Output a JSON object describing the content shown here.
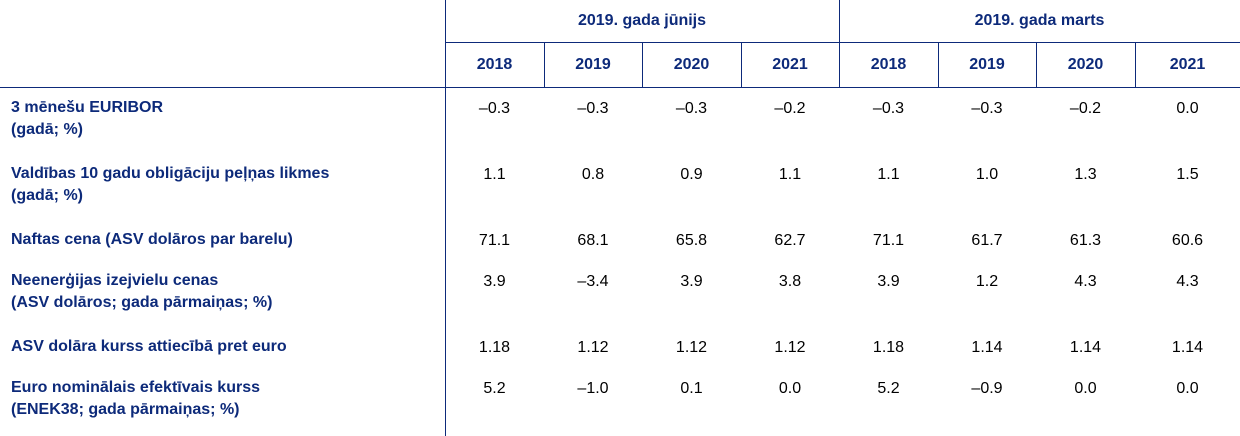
{
  "table": {
    "groups": [
      "2019. gada jūnijs",
      "2019. gada marts"
    ],
    "years": [
      "2018",
      "2019",
      "2020",
      "2021",
      "2018",
      "2019",
      "2020",
      "2021"
    ],
    "rows": [
      {
        "label": "3 mēnešu EURIBOR",
        "sublabel": "(gadā; %)",
        "values": [
          "–0.3",
          "–0.3",
          "–0.3",
          "–0.2",
          "–0.3",
          "–0.3",
          "–0.2",
          "0.0"
        ]
      },
      {
        "label": "Valdības 10 gadu obligāciju peļņas likmes",
        "sublabel": "(gadā; %)",
        "values": [
          "1.1",
          "0.8",
          "0.9",
          "1.1",
          "1.1",
          "1.0",
          "1.3",
          "1.5"
        ]
      },
      {
        "label": "Naftas cena (ASV dolāros par barelu)",
        "sublabel": "",
        "values": [
          "71.1",
          "68.1",
          "65.8",
          "62.7",
          "71.1",
          "61.7",
          "61.3",
          "60.6"
        ]
      },
      {
        "label": "Neenerģijas izejvielu cenas",
        "sublabel": "(ASV dolāros; gada pārmaiņas; %)",
        "values": [
          "3.9",
          "–3.4",
          "3.9",
          "3.8",
          "3.9",
          "1.2",
          "4.3",
          "4.3"
        ]
      },
      {
        "label": "ASV dolāra kurss attiecībā pret euro",
        "sublabel": "",
        "values": [
          "1.18",
          "1.12",
          "1.12",
          "1.12",
          "1.18",
          "1.14",
          "1.14",
          "1.14"
        ]
      },
      {
        "label": "Euro nominālais efektīvais kurss",
        "sublabel": "(ENEK38; gada pārmaiņas; %)",
        "values": [
          "5.2",
          "–1.0",
          "0.1",
          "0.0",
          "5.2",
          "–0.9",
          "0.0",
          "0.0"
        ]
      }
    ]
  }
}
